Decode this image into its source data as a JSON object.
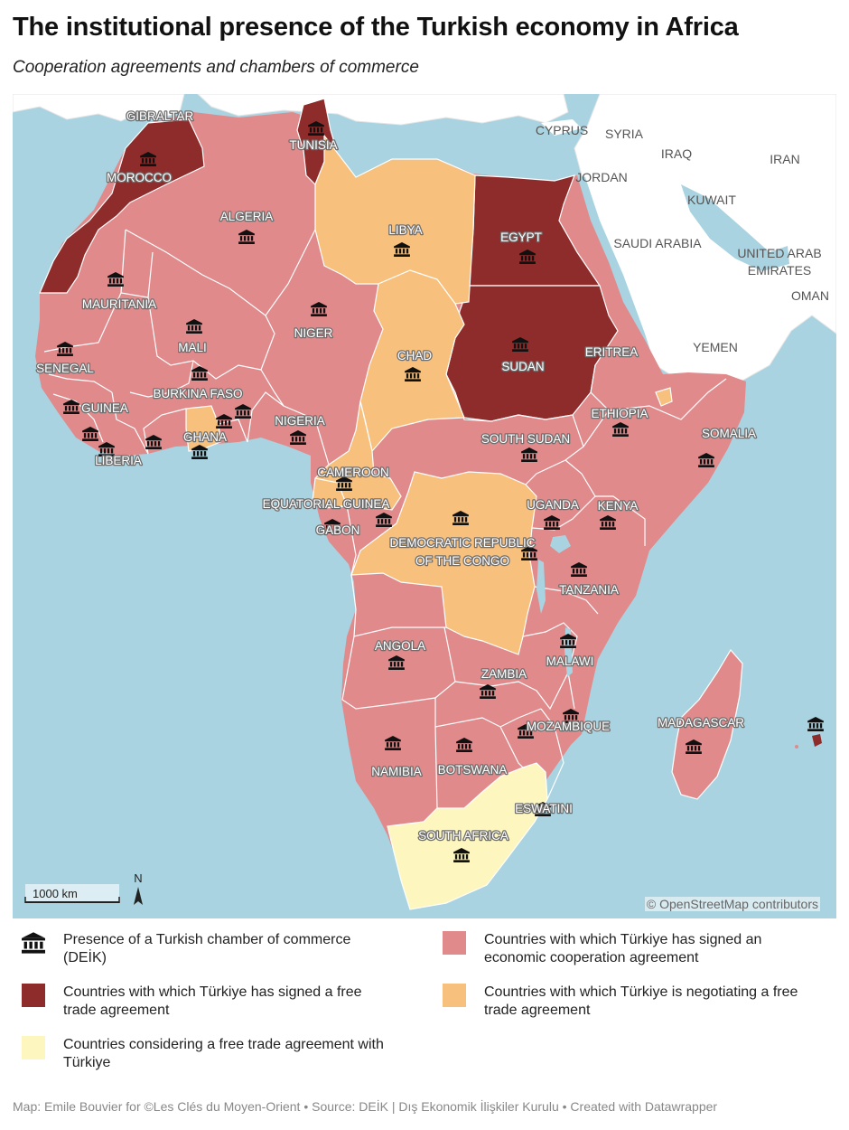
{
  "title": "The institutional presence of the Turkish economy in Africa",
  "subtitle": "Cooperation agreements and chambers of commerce",
  "colors": {
    "sea": "#a9d3e0",
    "land_other": "#ffffff",
    "free_trade": "#8e2b2b",
    "economic_cooperation": "#e08a8c",
    "negotiating": "#f7c07d",
    "considering": "#fdf7bf",
    "border": "#ffffff"
  },
  "map": {
    "attribution": "© OpenStreetMap contributors",
    "scale_label": "1000 km",
    "north_label": "N",
    "country_labels": [
      "GIBRALTAR",
      "TUNISIA",
      "MOROCCO",
      "ALGERIA",
      "LIBYA",
      "EGYPT",
      "MAURITANIA",
      "MALI",
      "NIGER",
      "CHAD",
      "SUDAN",
      "ERITREA",
      "SENEGAL",
      "BURKINA FASO",
      "GUINEA",
      "LIBERIA",
      "GHANA",
      "NIGERIA",
      "CAMEROON",
      "EQUATORIAL GUINEA",
      "GABON",
      "DEMOCRATIC REPUBLIC",
      "OF THE CONGO",
      "SOUTH SUDAN",
      "ETHIOPIA",
      "SOMALIA",
      "UGANDA",
      "KENYA",
      "TANZANIA",
      "ANGOLA",
      "ZAMBIA",
      "MALAWI",
      "MOZAMBIQUE",
      "MADAGASCAR",
      "NAMIBIA",
      "BOTSWANA",
      "ESWATINI",
      "SOUTH AFRICA"
    ],
    "other_labels": [
      "CYPRUS",
      "SYRIA",
      "IRAQ",
      "IRAN",
      "JORDAN",
      "KUWAIT",
      "SAUDI ARABIA",
      "UNITED ARAB",
      "EMIRATES",
      "OMAN",
      "YEMEN"
    ]
  },
  "legend": [
    {
      "label": "Presence of a Turkish chamber of commerce (DEİK)",
      "symbol": "bank-icon"
    },
    {
      "label": "Countries with which Türkiye has signed an economic cooperation agreement",
      "color": "#e08a8c"
    },
    {
      "label": "Countries with which Türkiye has signed a free trade agreement",
      "color": "#8e2b2b"
    },
    {
      "label": "Countries with which Türkiye is negotiating a free trade agreement",
      "color": "#f7c07d"
    },
    {
      "label": "Countries considering a free trade agreement with Türkiye",
      "color": "#fdf7bf"
    }
  ],
  "footer": "Map: Emile Bouvier for ©Les Clés du Moyen-Orient • Source: DEİK | Dış Ekonomik İlişkiler Kurulu • Created with Datawrapper"
}
